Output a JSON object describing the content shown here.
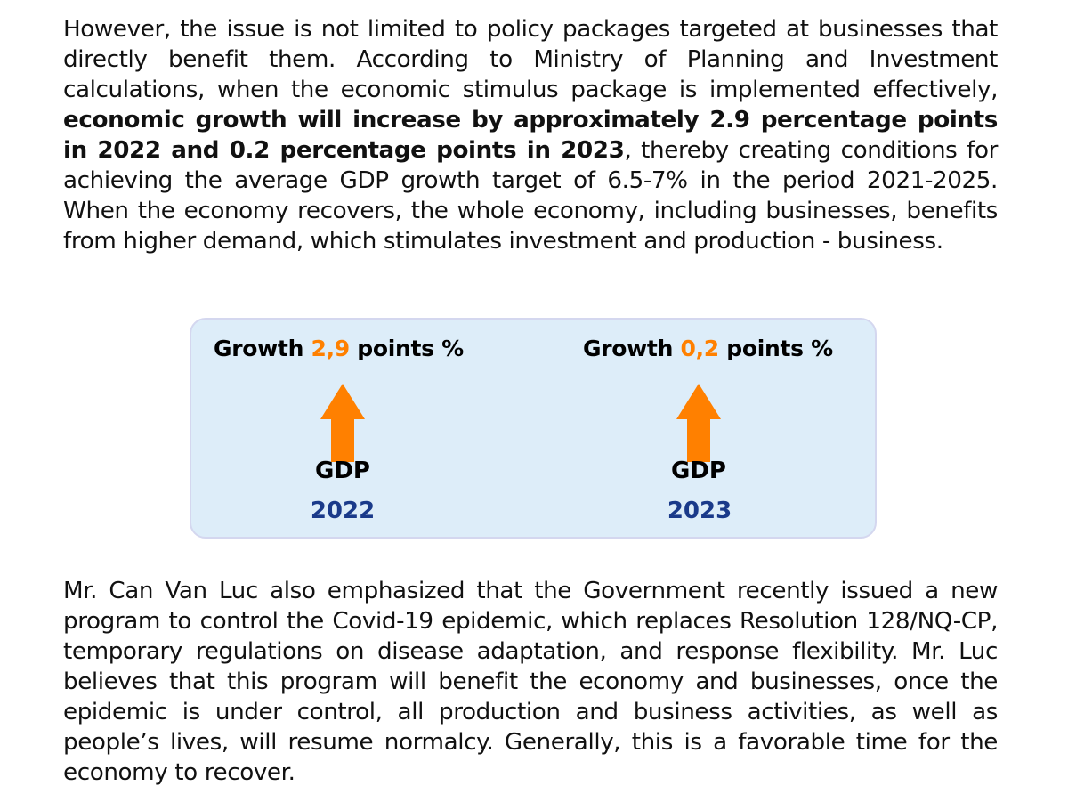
{
  "article": {
    "paragraph1": {
      "before_bold": "However, the issue is not limited to policy packages targeted at businesses that directly benefit them. According to Ministry of Planning and Investment calculations, when the economic stimulus package is implemented effectively, ",
      "bold": "economic growth will increase by approximately 2.9 percentage points in 2022 and 0.2 percentage points in 2023",
      "after_bold": ", thereby creating conditions for achieving the average GDP growth target of 6.5-7% in the period 2021-2025. When the economy recovers, the whole economy, including businesses, benefits from higher demand, which stimulates investment and production - business."
    },
    "paragraph2": "Mr. Can Van Luc also emphasized that the Government recently issued a new program to control the Covid-19 epidemic, which replaces Resolution 128/NQ-CP, temporary regulations on disease adaptation, and response flexibility. Mr. Luc believes that this program will benefit the economy and businesses, once the epidemic is under control, all production and business activities, as well as people’s lives, will resume normalcy. Generally, this is a favorable time for the economy to recover."
  },
  "infographic": {
    "items": [
      {
        "prefix": "Growth ",
        "value": "2,9",
        "suffix": " points %",
        "indicator": "GDP",
        "year": "2022",
        "arrow_icon": "up-arrow-icon"
      },
      {
        "prefix": "Growth ",
        "value": "0,2",
        "suffix": " points %",
        "indicator": "GDP",
        "year": "2023",
        "arrow_icon": "up-arrow-icon"
      }
    ],
    "colors": {
      "background": "#ddedf9",
      "border": "#d4d7ef",
      "accent": "#ff8000",
      "year": "#1a3a8a"
    }
  }
}
